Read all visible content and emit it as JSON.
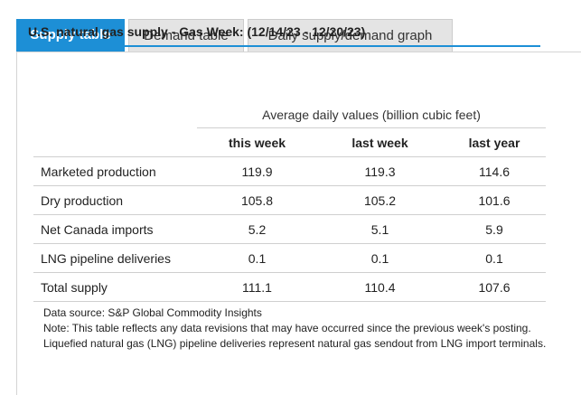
{
  "tabs": [
    {
      "label": "Supply table",
      "active": true
    },
    {
      "label": "Demand table",
      "active": false
    },
    {
      "label": "Daily supply/demand graph",
      "active": false
    }
  ],
  "table": {
    "title": "U.S. natural gas supply - Gas Week: (12/14/23 - 12/20/23)",
    "group_header": "Average daily values (billion cubic feet)",
    "columns": [
      "this week",
      "last week",
      "last year"
    ],
    "rows": [
      {
        "label": "Marketed production",
        "values": [
          "119.9",
          "119.3",
          "114.6"
        ]
      },
      {
        "label": "Dry production",
        "values": [
          "105.8",
          "105.2",
          "101.6"
        ]
      },
      {
        "label": "Net Canada imports",
        "values": [
          "5.2",
          "5.1",
          "5.9"
        ]
      },
      {
        "label": "LNG pipeline deliveries",
        "values": [
          "0.1",
          "0.1",
          "0.1"
        ]
      },
      {
        "label": "Total supply",
        "values": [
          "111.1",
          "110.4",
          "107.6"
        ]
      }
    ]
  },
  "notes": {
    "source": "Data source: S&P Global Commodity Insights",
    "note": "Note: This table reflects any data revisions that may have occurred since the previous week's posting. Liquefied natural gas (LNG) pipeline deliveries represent natural gas sendout from LNG import terminals."
  },
  "colors": {
    "accent": "#1d8fd6",
    "tab_inactive": "#e4e4e4",
    "rule": "#cfcfcf"
  }
}
